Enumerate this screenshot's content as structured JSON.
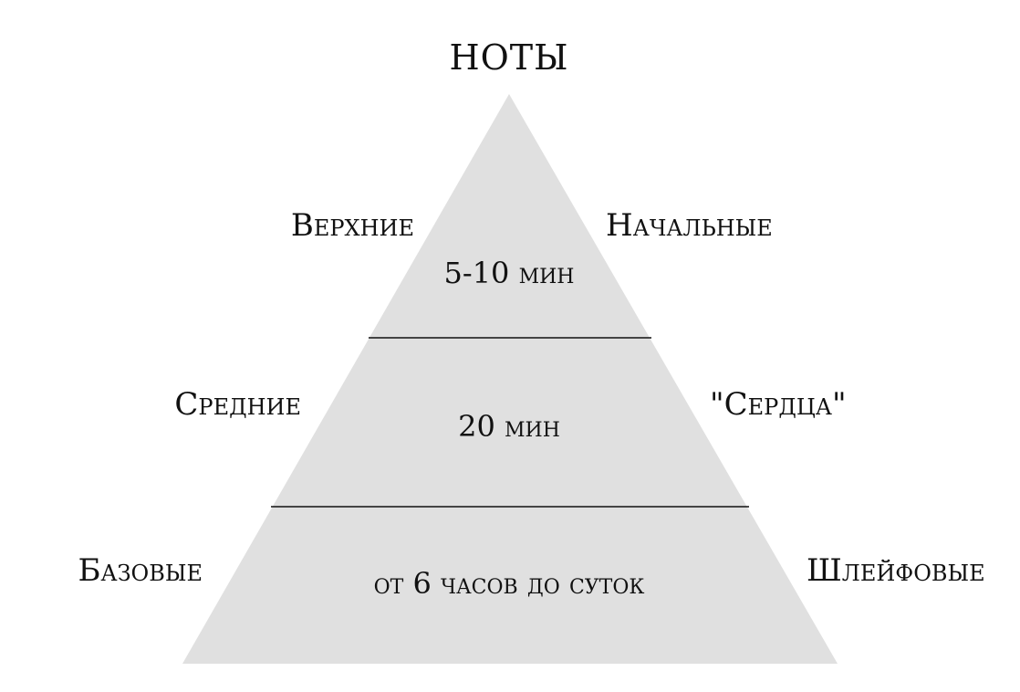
{
  "title": "НОТЫ",
  "colors": {
    "pyramid_fill": "#e0e0e0",
    "divider": "#111111",
    "text": "#111111",
    "background": "#ffffff"
  },
  "tiers": [
    {
      "left_label": "Верхние",
      "right_label": "Начальные",
      "duration": "5-10 мин"
    },
    {
      "left_label": "Средние",
      "right_label": "\"Сердца\"",
      "duration": "20 мин"
    },
    {
      "left_label": "Базовые",
      "right_label": "Шлейфовые",
      "duration": "от 6 часов до суток"
    }
  ]
}
